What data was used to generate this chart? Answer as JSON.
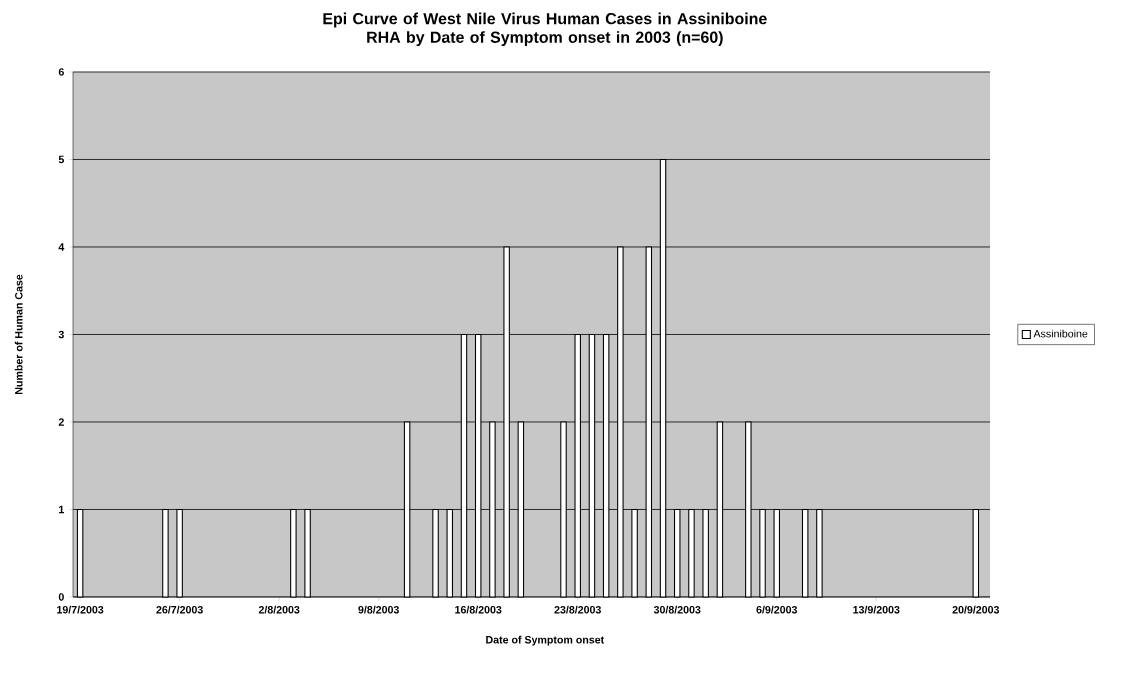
{
  "chart_data": {
    "type": "bar",
    "title": "Epi Curve of West Nile Virus Human Cases in Assiniboine RHA by Date of Symptom onset in 2003 (n=60)",
    "xlabel": "Date of Symptom onset",
    "ylabel": "Number of Human Case",
    "x": [
      "2003-07-19",
      "2003-07-25",
      "2003-07-26",
      "2003-08-03",
      "2003-08-04",
      "2003-08-11",
      "2003-08-13",
      "2003-08-14",
      "2003-08-15",
      "2003-08-16",
      "2003-08-17",
      "2003-08-18",
      "2003-08-19",
      "2003-08-22",
      "2003-08-23",
      "2003-08-24",
      "2003-08-25",
      "2003-08-26",
      "2003-08-27",
      "2003-08-28",
      "2003-08-29",
      "2003-08-30",
      "2003-08-31",
      "2003-09-01",
      "2003-09-02",
      "2003-09-04",
      "2003-09-05",
      "2003-09-06",
      "2003-09-08",
      "2003-09-09",
      "2003-09-20"
    ],
    "series": [
      {
        "name": "Assiniboine",
        "color": "#ffffff",
        "values": [
          1,
          1,
          1,
          1,
          1,
          2,
          1,
          1,
          3,
          3,
          2,
          4,
          2,
          2,
          3,
          3,
          3,
          4,
          1,
          4,
          5,
          1,
          1,
          1,
          2,
          2,
          1,
          1,
          1,
          1,
          1
        ]
      }
    ],
    "xlim": [
      "2003-07-18T12:00",
      "2003-09-21T00:00"
    ],
    "xticks": [
      {
        "value": "2003-07-19",
        "label": "19/7/2003"
      },
      {
        "value": "2003-07-26",
        "label": "26/7/2003"
      },
      {
        "value": "2003-08-02",
        "label": "2/8/2003"
      },
      {
        "value": "2003-08-09",
        "label": "9/8/2003"
      },
      {
        "value": "2003-08-16",
        "label": "16/8/2003"
      },
      {
        "value": "2003-08-23",
        "label": "23/8/2003"
      },
      {
        "value": "2003-08-30",
        "label": "30/8/2003"
      },
      {
        "value": "2003-09-06",
        "label": "6/9/2003"
      },
      {
        "value": "2003-09-13",
        "label": "13/9/2003"
      },
      {
        "value": "2003-09-20",
        "label": "20/9/2003"
      }
    ],
    "ylim": [
      0,
      6
    ],
    "yticks": [
      0,
      1,
      2,
      3,
      4,
      5,
      6
    ],
    "grid": "y",
    "legend": "right"
  }
}
